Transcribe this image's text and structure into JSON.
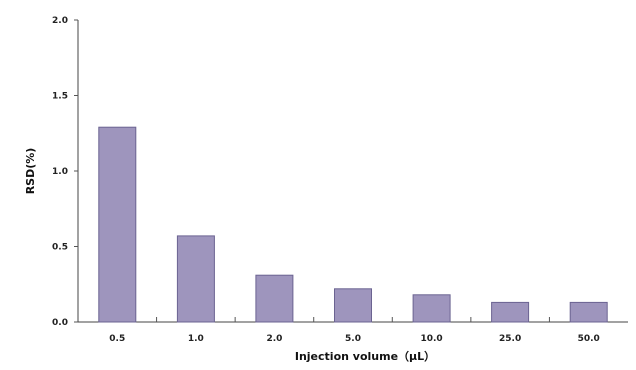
{
  "chart_data": {
    "type": "bar",
    "categories": [
      "0.5",
      "1.0",
      "2.0",
      "5.0",
      "10.0",
      "25.0",
      "50.0"
    ],
    "values": [
      1.29,
      0.57,
      0.31,
      0.22,
      0.18,
      0.13,
      0.13
    ],
    "title": "",
    "xlabel": "Injection volume（μL）",
    "ylabel": "RSD(%)",
    "ylim": [
      0,
      2.0
    ],
    "yticks": [
      "0.0",
      "0.5",
      "1.0",
      "1.5",
      "2.0"
    ],
    "grid": false,
    "legend": "none",
    "bar_color": "#9e95bd"
  }
}
